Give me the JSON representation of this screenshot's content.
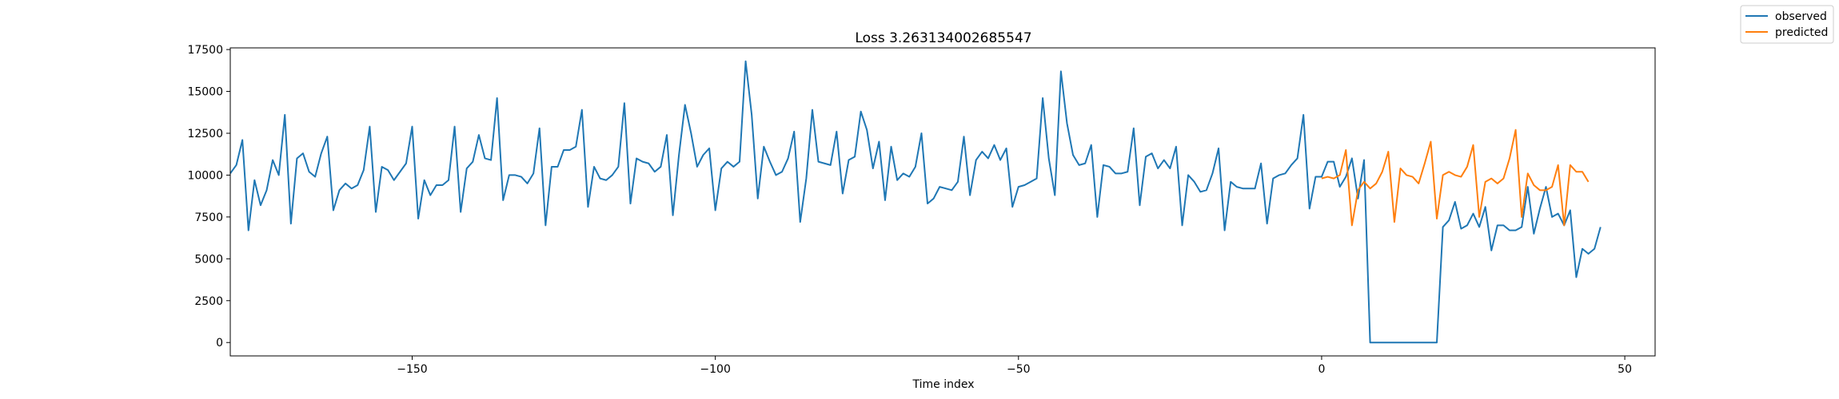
{
  "chart_data": {
    "type": "line",
    "title": "Loss 3.263134002685547",
    "xlabel": "Time index",
    "ylabel": "",
    "xlim": [
      -180,
      55
    ],
    "ylim": [
      -800,
      17600
    ],
    "xticks": [
      -150,
      -100,
      -50,
      0,
      50
    ],
    "xtick_labels": [
      "−150",
      "−100",
      "−50",
      "0",
      "50"
    ],
    "yticks": [
      0,
      2500,
      5000,
      7500,
      10000,
      12500,
      15000,
      17500
    ],
    "ytick_labels": [
      "0",
      "2500",
      "5000",
      "7500",
      "10000",
      "12500",
      "15000",
      "17500"
    ],
    "grid": false,
    "legend_position": "top-right (outside plot)",
    "series": [
      {
        "name": "observed",
        "color": "#1f77b4",
        "x_start": -180,
        "values": [
          10100,
          10600,
          12100,
          6700,
          9700,
          8200,
          9100,
          10900,
          10000,
          13600,
          7100,
          11000,
          11300,
          10200,
          9900,
          11300,
          12300,
          7900,
          9100,
          9500,
          9200,
          9400,
          10300,
          12900,
          7800,
          10500,
          10300,
          9700,
          10200,
          10700,
          12900,
          7400,
          9700,
          8800,
          9400,
          9400,
          9700,
          12900,
          7800,
          10400,
          10800,
          12400,
          11000,
          10900,
          14600,
          8500,
          10000,
          10000,
          9900,
          9500,
          10100,
          12800,
          7000,
          10500,
          10500,
          11500,
          11500,
          11700,
          13900,
          8100,
          10500,
          9800,
          9700,
          10000,
          10500,
          14300,
          8300,
          11000,
          10800,
          10700,
          10200,
          10500,
          12400,
          7600,
          11200,
          14200,
          12500,
          10500,
          11200,
          11600,
          7900,
          10400,
          10800,
          10500,
          10800,
          16800,
          13600,
          8600,
          11700,
          10800,
          10000,
          10200,
          11000,
          12600,
          7200,
          9800,
          13900,
          10800,
          10700,
          10600,
          12600,
          8900,
          10900,
          11100,
          13800,
          12700,
          10400,
          12000,
          8500,
          11700,
          9700,
          10100,
          9900,
          10500,
          12500,
          8300,
          8600,
          9300,
          9200,
          9100,
          9600,
          12300,
          8800,
          10900,
          11400,
          11000,
          11800,
          10900,
          11600,
          8100,
          9300,
          9400,
          9600,
          9800,
          14600,
          11000,
          8800,
          16200,
          13100,
          11200,
          10600,
          10700,
          11800,
          7500,
          10600,
          10500,
          10100,
          10100,
          10200,
          12800,
          8200,
          11100,
          11300,
          10400,
          10900,
          10400,
          11700,
          7000,
          10000,
          9600,
          9000,
          9100,
          10100,
          11600,
          6700,
          9600,
          9300,
          9200,
          9200,
          9200,
          10700,
          7100,
          9800,
          10000,
          10100,
          10600,
          11000,
          13600,
          8000,
          9900,
          9900,
          10800,
          10800,
          9300,
          9900,
          11000,
          8600,
          10900,
          0,
          0,
          0,
          0,
          0,
          0,
          0,
          0,
          0,
          0,
          0,
          0,
          6900,
          7300,
          8400,
          6800,
          7000,
          7700,
          6900,
          8100,
          5500,
          7000,
          7000,
          6700,
          6700,
          6900,
          9300,
          6500,
          8000,
          9300,
          7500,
          7700,
          7000,
          7900,
          3900,
          5600,
          5300,
          5600,
          6900
        ]
      },
      {
        "name": "predicted",
        "color": "#ff7f0e",
        "x_start": 0,
        "values": [
          9800,
          9900,
          9800,
          10000,
          11500,
          7000,
          9100,
          9600,
          9200,
          9500,
          10200,
          11400,
          7200,
          10400,
          10000,
          9900,
          9500,
          10700,
          12000,
          7400,
          10000,
          10200,
          10000,
          9900,
          10500,
          11800,
          7500,
          9600,
          9800,
          9500,
          9800,
          11000,
          12700,
          7500,
          10100,
          9400,
          9100,
          9100,
          9300,
          10600,
          7000,
          10600,
          10200,
          10200,
          9600
        ]
      }
    ]
  }
}
